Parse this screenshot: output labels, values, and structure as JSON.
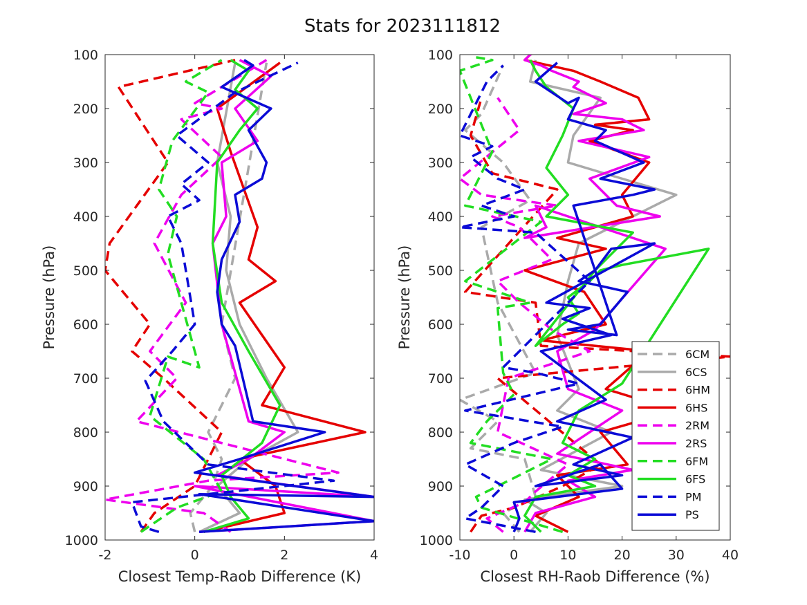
{
  "figure": {
    "title": "Stats for 2023111812"
  },
  "legend": {
    "entries": [
      {
        "label": "6CM",
        "color": "#aaaaaa",
        "dash": true
      },
      {
        "label": "6CS",
        "color": "#aaaaaa",
        "dash": false
      },
      {
        "label": "6HM",
        "color": "#e50000",
        "dash": true
      },
      {
        "label": "6HS",
        "color": "#e50000",
        "dash": false
      },
      {
        "label": "2RM",
        "color": "#ee00ee",
        "dash": true
      },
      {
        "label": "2RS",
        "color": "#ee00ee",
        "dash": false
      },
      {
        "label": "6FM",
        "color": "#22dd22",
        "dash": true
      },
      {
        "label": "6FS",
        "color": "#22dd22",
        "dash": false
      },
      {
        "label": "PM",
        "color": "#0b0bd6",
        "dash": true
      },
      {
        "label": "PS",
        "color": "#0b0bd6",
        "dash": false
      }
    ]
  },
  "chart_data": [
    {
      "type": "line",
      "title": "Stats for 2023111812",
      "xlabel": "Closest Temp-Raob Difference (K)",
      "ylabel": "Pressure (hPa)",
      "xlim": [
        -2,
        4
      ],
      "ylim": [
        100,
        1000
      ],
      "y_reversed": true,
      "xticks": [
        -2,
        0,
        2,
        4
      ],
      "yticks": [
        100,
        200,
        300,
        400,
        500,
        600,
        700,
        800,
        900,
        1000
      ],
      "grid": false,
      "series": [
        {
          "name": "6CM",
          "color": "#aaaaaa",
          "dash": true,
          "x": [
            0.0,
            -0.1,
            0.4,
            0.6,
            0.3,
            0.9,
            0.6,
            1.6
          ],
          "y": [
            985,
            950,
            900,
            850,
            800,
            700,
            600,
            115
          ]
        },
        {
          "name": "6CS",
          "color": "#aaaaaa",
          "dash": false,
          "x": [
            0.1,
            1.0,
            0.5,
            1.2,
            2.3,
            1.6,
            1.0,
            0.7,
            0.8,
            0.5,
            0.9
          ],
          "y": [
            985,
            950,
            900,
            850,
            800,
            700,
            600,
            500,
            400,
            300,
            115
          ]
        },
        {
          "name": "6HM",
          "color": "#e50000",
          "dash": true,
          "x": [
            -1.2,
            -0.9,
            0.0,
            0.3,
            0.6,
            -0.7,
            -1.4,
            -1.0,
            -2.0,
            -1.9,
            -0.6,
            -1.7,
            0.9
          ],
          "y": [
            985,
            950,
            900,
            850,
            800,
            700,
            650,
            600,
            500,
            450,
            300,
            160,
            110
          ]
        },
        {
          "name": "6HS",
          "color": "#e50000",
          "dash": false,
          "x": [
            0.2,
            2.0,
            1.8,
            1.0,
            3.8,
            1.5,
            2.0,
            1.5,
            1.0,
            1.8,
            1.2,
            1.4,
            0.8,
            0.5,
            1.9
          ],
          "y": [
            985,
            950,
            900,
            850,
            800,
            750,
            680,
            620,
            560,
            520,
            480,
            420,
            280,
            200,
            115
          ]
        },
        {
          "name": "2RM",
          "color": "#ee00ee",
          "dash": true,
          "x": [
            0.8,
            0.2,
            -2.0,
            0.3,
            3.2,
            -1.3,
            -0.4,
            -1.0,
            -0.2,
            -0.9,
            -0.3,
            0.6,
            -0.3,
            0.6,
            0.0,
            1.6
          ],
          "y": [
            985,
            950,
            925,
            890,
            875,
            780,
            700,
            650,
            560,
            450,
            360,
            290,
            220,
            200,
            190,
            110
          ]
        },
        {
          "name": "2RS",
          "color": "#ee00ee",
          "dash": false,
          "x": [
            0.1,
            4.0,
            0.0,
            4.0,
            0.5,
            1.2,
            2.0,
            1.2,
            0.6,
            0.4,
            0.7,
            0.6,
            1.4,
            0.9,
            1.7,
            1.0
          ],
          "y": [
            985,
            965,
            900,
            920,
            880,
            850,
            800,
            780,
            600,
            450,
            400,
            300,
            260,
            200,
            140,
            110
          ]
        },
        {
          "name": "6FM",
          "color": "#22dd22",
          "dash": true,
          "x": [
            -1.2,
            -0.4,
            0.6,
            0.2,
            -1.0,
            -0.6,
            0.1,
            -0.3,
            -0.6,
            -0.4,
            -0.8,
            -0.5,
            0.3,
            -0.2,
            0.6
          ],
          "y": [
            985,
            940,
            910,
            850,
            770,
            660,
            680,
            560,
            470,
            400,
            350,
            260,
            170,
            150,
            110
          ]
        },
        {
          "name": "6FS",
          "color": "#22dd22",
          "dash": false,
          "x": [
            0.2,
            1.2,
            0.8,
            0.6,
            1.5,
            1.9,
            1.2,
            0.6,
            0.4,
            0.5,
            1.0,
            1.4,
            0.9,
            1.2,
            0.8
          ],
          "y": [
            985,
            960,
            920,
            880,
            820,
            750,
            650,
            560,
            450,
            300,
            240,
            200,
            165,
            130,
            110
          ]
        },
        {
          "name": "PM",
          "color": "#0b0bd6",
          "dash": true,
          "x": [
            -0.8,
            -1.2,
            -1.4,
            3.1,
            0.3,
            -0.7,
            -1.1,
            -0.5,
            0.0,
            -0.3,
            -0.6,
            0.1,
            -0.3,
            0.3,
            -0.4,
            0.9,
            2.3
          ],
          "y": [
            985,
            975,
            930,
            890,
            860,
            780,
            705,
            650,
            600,
            450,
            400,
            370,
            340,
            300,
            250,
            170,
            115
          ]
        },
        {
          "name": "PS",
          "color": "#0b0bd6",
          "dash": false,
          "x": [
            0.1,
            4.0,
            0.1,
            4.0,
            0.0,
            1.0,
            2.9,
            1.3,
            0.9,
            0.6,
            0.5,
            0.6,
            1.0,
            0.9,
            1.5,
            1.6,
            1.2,
            1.7,
            0.6,
            1.3,
            1.1
          ],
          "y": [
            985,
            965,
            915,
            920,
            875,
            850,
            800,
            780,
            640,
            600,
            540,
            480,
            410,
            360,
            330,
            300,
            240,
            200,
            160,
            120,
            110
          ]
        }
      ]
    },
    {
      "type": "line",
      "xlabel": "Closest RH-Raob Difference (%)",
      "ylabel": "Pressure (hPa)",
      "xlim": [
        -10,
        40
      ],
      "ylim": [
        100,
        1000
      ],
      "y_reversed": true,
      "xticks": [
        -10,
        0,
        10,
        20,
        30,
        40
      ],
      "yticks": [
        100,
        200,
        300,
        400,
        500,
        600,
        700,
        800,
        900,
        1000
      ],
      "grid": false,
      "series": [
        {
          "name": "6CM",
          "color": "#aaaaaa",
          "dash": true,
          "x": [
            1,
            -2,
            4,
            2,
            -8,
            -3,
            -10,
            4,
            -3,
            -6,
            3,
            -2,
            -9,
            -6,
            -2
          ],
          "y": [
            985,
            950,
            920,
            850,
            830,
            780,
            740,
            690,
            560,
            420,
            370,
            300,
            240,
            210,
            120
          ]
        },
        {
          "name": "6CS",
          "color": "#aaaaaa",
          "dash": false,
          "x": [
            3,
            6,
            2,
            20,
            5,
            18,
            8,
            12,
            8,
            10,
            12,
            30,
            10,
            11,
            16,
            3,
            4
          ],
          "y": [
            985,
            950,
            925,
            900,
            870,
            800,
            760,
            720,
            620,
            520,
            450,
            360,
            300,
            250,
            180,
            150,
            110
          ]
        },
        {
          "name": "6HM",
          "color": "#e50000",
          "dash": true,
          "x": [
            -8,
            -6,
            0,
            9,
            16,
            -3,
            40,
            5,
            4,
            -9,
            8,
            -4,
            -8,
            -6
          ],
          "y": [
            985,
            955,
            940,
            900,
            860,
            700,
            660,
            640,
            560,
            540,
            350,
            320,
            250,
            180
          ]
        },
        {
          "name": "6HS",
          "color": "#e50000",
          "dash": false,
          "x": [
            10,
            4,
            12,
            8,
            21,
            16,
            30,
            17,
            25,
            5,
            17,
            13,
            2,
            17,
            8,
            22,
            20,
            25,
            14,
            22,
            15,
            25,
            23,
            16,
            11,
            2,
            3,
            4
          ],
          "y": [
            985,
            955,
            920,
            880,
            860,
            800,
            760,
            720,
            650,
            630,
            600,
            540,
            500,
            460,
            440,
            400,
            360,
            300,
            260,
            240,
            230,
            220,
            180,
            150,
            130,
            110,
            100,
            95
          ]
        },
        {
          "name": "2RM",
          "color": "#ee00ee",
          "dash": true,
          "x": [
            -2,
            -5,
            2,
            4,
            10,
            -3,
            -1,
            14,
            7,
            1,
            -3,
            7,
            1,
            -4,
            8,
            -6,
            -10,
            1,
            -3
          ],
          "y": [
            985,
            960,
            930,
            910,
            860,
            800,
            700,
            650,
            610,
            560,
            520,
            480,
            420,
            400,
            380,
            360,
            330,
            240,
            180
          ]
        },
        {
          "name": "2RS",
          "color": "#ee00ee",
          "dash": false,
          "x": [
            2,
            4,
            15,
            10,
            22,
            8,
            14,
            20,
            10,
            8,
            15,
            28,
            4,
            6,
            2,
            27,
            19,
            14,
            25,
            12,
            24,
            22,
            20,
            11,
            17,
            11,
            12,
            7,
            5,
            2,
            3,
            4
          ],
          "y": [
            985,
            950,
            920,
            890,
            870,
            840,
            800,
            760,
            720,
            650,
            610,
            460,
            380,
            420,
            440,
            400,
            380,
            330,
            290,
            260,
            240,
            230,
            220,
            210,
            190,
            160,
            150,
            130,
            120,
            110,
            100,
            95
          ]
        },
        {
          "name": "6FM",
          "color": "#22dd22",
          "dash": true,
          "x": [
            9,
            -6,
            -7,
            7,
            -8,
            -5,
            0,
            -2,
            -3,
            3,
            -9,
            5,
            -9,
            -4,
            -10,
            -4,
            -7
          ],
          "y": [
            985,
            940,
            920,
            850,
            820,
            780,
            730,
            690,
            570,
            560,
            520,
            410,
            380,
            280,
            130,
            110,
            105
          ]
        },
        {
          "name": "6FS",
          "color": "#22dd22",
          "dash": false,
          "x": [
            5,
            2,
            4,
            15,
            10,
            15,
            9,
            12,
            20,
            36,
            20,
            16,
            14,
            10,
            12,
            9,
            4,
            15,
            22,
            6,
            10,
            6,
            9,
            11,
            6,
            4,
            3
          ],
          "y": [
            985,
            955,
            920,
            900,
            880,
            850,
            820,
            760,
            710,
            460,
            490,
            500,
            520,
            550,
            580,
            600,
            640,
            500,
            430,
            400,
            360,
            310,
            250,
            200,
            160,
            130,
            110
          ]
        },
        {
          "name": "PM",
          "color": "#0b0bd6",
          "dash": true,
          "x": [
            4,
            -9,
            -6,
            -2,
            -9,
            0,
            9,
            -9,
            12,
            4,
            -2,
            14,
            4,
            -10,
            0,
            -6,
            2,
            -3,
            -8,
            -4,
            -10,
            -7,
            -5,
            -2
          ],
          "y": [
            985,
            960,
            940,
            900,
            860,
            820,
            790,
            760,
            710,
            690,
            680,
            520,
            430,
            420,
            400,
            380,
            350,
            330,
            290,
            270,
            250,
            190,
            150,
            120
          ]
        },
        {
          "name": "PS",
          "color": "#0b0bd6",
          "dash": false,
          "x": [
            0,
            1,
            0,
            20,
            16,
            4,
            20,
            11,
            22,
            8,
            17,
            5,
            18,
            9,
            14,
            6,
            26,
            18,
            15,
            12,
            21,
            16,
            10,
            19,
            11,
            22,
            26,
            16,
            24,
            15,
            17,
            10,
            12,
            10,
            4,
            8
          ],
          "y": [
            985,
            960,
            930,
            905,
            860,
            900,
            880,
            860,
            810,
            780,
            740,
            650,
            620,
            590,
            570,
            560,
            450,
            460,
            500,
            520,
            540,
            600,
            610,
            620,
            380,
            360,
            350,
            330,
            300,
            260,
            240,
            220,
            180,
            190,
            150,
            115
          ]
        }
      ]
    }
  ]
}
